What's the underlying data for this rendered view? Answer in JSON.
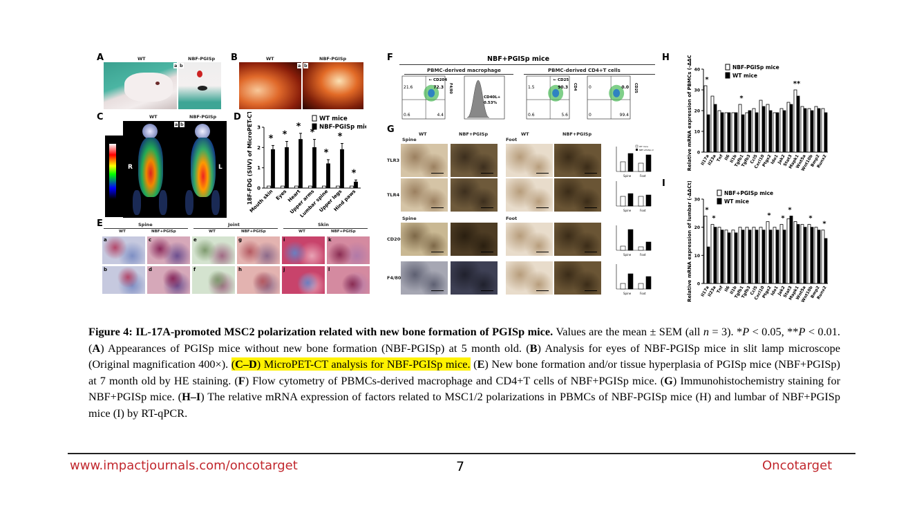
{
  "panels": {
    "A": {
      "label": "A",
      "wt": "WT",
      "nbf": "NBF-PGISp",
      "a": "a",
      "b": "b"
    },
    "B": {
      "label": "B",
      "wt": "WT",
      "nbf": "NBF-PGISp",
      "a": "a",
      "b": "b"
    },
    "C": {
      "label": "C",
      "wt": "WT",
      "nbf": "NBF-PGISp",
      "r": "R",
      "l": "L",
      "a": "a",
      "b": "b"
    },
    "D": {
      "label": "D"
    },
    "E": {
      "label": "E",
      "groups": [
        "Spine",
        "Joint",
        "Skin"
      ],
      "sub": [
        "WT",
        "NBF+PGISp",
        "WT",
        "NBF+PGISp",
        "WT",
        "NBF+PGISp"
      ],
      "letters_top": [
        "a",
        "c",
        "e",
        "g",
        "i",
        "k"
      ],
      "letters_bottom": [
        "b",
        "d",
        "f",
        "h",
        "j",
        "l"
      ]
    },
    "F": {
      "label": "F",
      "title": "NBF+PGISp mice",
      "left_title": "PBMC-derived macrophage",
      "right_title": "PBMC-derived CD4+T cells",
      "q1": [
        "21.6",
        "72.3",
        "0.6",
        "4.4"
      ],
      "marker1": "CD204",
      "marker_y1": "F4/80",
      "hist": "CD40L+",
      "hist_val": "0.53%",
      "q2": [
        "1.5",
        "90.3",
        "0.6",
        "5.6"
      ],
      "marker2": "CD25",
      "marker_y2": "CD4",
      "q3": [
        "0",
        "0.0",
        "0",
        "99.4"
      ],
      "marker_y3": "CD25"
    },
    "G": {
      "label": "G",
      "cols": [
        "WT",
        "NBF+PGISp",
        "WT",
        "NBF+PGISp"
      ],
      "site1": "Spine",
      "site2": "Foot",
      "rows": [
        "TLR3",
        "TLR4",
        "CD206",
        "F4/80"
      ],
      "bar_x": [
        "Spine",
        "Foot"
      ],
      "legend": [
        "WT mice",
        "NBF+PGISp mice"
      ]
    },
    "H": {
      "label": "H",
      "legend": [
        "NBF-PGISp mice",
        "WT mice"
      ]
    },
    "I": {
      "label": "I",
      "legend": [
        "NBF+PGISp mice",
        "WT mice"
      ]
    }
  },
  "chart_data": [
    {
      "id": "D",
      "type": "bar",
      "categories": [
        "Mouth skin",
        "Eyes",
        "Heart",
        "Upper arms",
        "Lumbar spine",
        "Upper legs",
        "Hind paws"
      ],
      "series": [
        {
          "name": "WT mice",
          "values": [
            0.1,
            0.1,
            0.1,
            0.1,
            0.1,
            0.1,
            0.1
          ]
        },
        {
          "name": "NBF-PGISp mice",
          "values": [
            1.9,
            2.0,
            2.4,
            2.0,
            1.2,
            1.9,
            0.3
          ]
        }
      ],
      "errors": [
        0.2,
        0.3,
        0.3,
        0.4,
        0.2,
        0.3,
        0.1
      ],
      "significance": [
        "*",
        "*",
        "*",
        "*",
        "*",
        "*",
        "*"
      ],
      "ylabel": "18F-FDG (SUV) of MicroPET-CT",
      "ylim": [
        0,
        3
      ],
      "yticks": [
        "0",
        "1",
        "2",
        "3"
      ],
      "legend": "top-right"
    },
    {
      "id": "H",
      "type": "bar",
      "categories": [
        "Il17a",
        "Il23a",
        "Tnf",
        "Il6",
        "Il1b",
        "Tgfb1",
        "Tgfb3",
        "Ccl5",
        "Cxcl10",
        "Ptgs2",
        "Ido1",
        "Jak2",
        "Stat3",
        "Mapk1",
        "Wnt5a",
        "Wnt10b",
        "Bmp2",
        "Runx2"
      ],
      "series": [
        {
          "name": "NBF-PGISp mice",
          "values": [
            32,
            27,
            20,
            19,
            19,
            23,
            19,
            21,
            25,
            23,
            19,
            21,
            24,
            30,
            22,
            21,
            22,
            21
          ]
        },
        {
          "name": "WT mice",
          "values": [
            18,
            23,
            19,
            19,
            19,
            18,
            20,
            19,
            22,
            20,
            19,
            20,
            23,
            27,
            21,
            20,
            21,
            19
          ]
        }
      ],
      "significance": [
        "*",
        "",
        "",
        "",
        "",
        "*",
        "",
        "",
        "",
        "",
        "",
        "",
        "",
        "**",
        "",
        "",
        "",
        ""
      ],
      "ylabel": "Relative mRNA expression of PBMCs (-ΔΔCt)",
      "ylim": [
        0,
        40
      ],
      "yticks": [
        "0",
        "10",
        "20",
        "30",
        "40"
      ],
      "legend": "top-left"
    },
    {
      "id": "I",
      "type": "bar",
      "categories": [
        "Il17a",
        "Il23a",
        "Tnf",
        "Il6",
        "Il1b",
        "Tgfb1",
        "Tgfb3",
        "Ccl5",
        "Cxcl10",
        "Ptgs2",
        "Ido1",
        "Jak2",
        "Stat3",
        "Mapk1",
        "Wnt5a",
        "Wnt10b",
        "Bmp2",
        "Runx2"
      ],
      "series": [
        {
          "name": "NBF+PGISp mice",
          "values": [
            24,
            21,
            20,
            19,
            19,
            20,
            20,
            20,
            20,
            22,
            20,
            21,
            23,
            22,
            21,
            21,
            20,
            19
          ]
        },
        {
          "name": "WT mice",
          "values": [
            13,
            20,
            19,
            18,
            18,
            19,
            19,
            19,
            19,
            19,
            19,
            19,
            24,
            21,
            20,
            20,
            19,
            16
          ]
        }
      ],
      "significance": [
        "*",
        "*",
        "",
        "",
        "",
        "",
        "",
        "",
        "",
        "*",
        "",
        "*",
        "*",
        "",
        "",
        "*",
        "",
        "*"
      ],
      "ylabel": "Relative mRNA expression of lumbar (-ΔΔCt)",
      "ylim": [
        0,
        30
      ],
      "yticks": [
        "0",
        "10",
        "20",
        "30"
      ],
      "legend": "top-left"
    }
  ],
  "caption": {
    "title": "Figure 4: IL-17A-promoted MSC2 polarization related with new bone formation of PGISp mice.",
    "p1": " Values are the mean ± SEM (all ",
    "n": "n",
    "p2": " = 3). *",
    "P1": "P",
    "p3": " < 0.05, **",
    "P2": "P",
    "p4": " < 0.01. (",
    "A": "A",
    "p5": ") Appearances of PGISp mice without new bone formation (NBF-PGISp) at 5 month old. (",
    "B": "B",
    "p6": ") Analysis for eyes of NBF-PGISp mice in slit lamp microscope (Original magnification 400×). ",
    "hl1": "(",
    "CD": "C–D",
    "hl2": ") MicroPET-CT analysis for NBF-PGISp mice.",
    "p7": " (",
    "E": "E",
    "p8": ") New bone formation and/or tissue hyperplasia of PGISp mice (NBF+PGISp) at 7 month old by HE staining. (",
    "F": "F",
    "p9": ") Flow cytometry of PBMCs-derived macrophage and CD4+T cells of NBF+PGISp mice. (",
    "G": "G",
    "p10": ") Immunohistochemistry staining for NBF+PGISp mice. (",
    "HI": "H–I",
    "p11": ") The relative mRNA expression of factors related to MSC1/2 polarizations in PBMCs of NBF-PGISp mice (H) and lumbar of NBF+PGISp mice (I) by RT-qPCR."
  },
  "footer": {
    "url": "www.impactjournals.com/oncotarget",
    "page": "7",
    "journal": "Oncotarget"
  },
  "colors": {
    "footer": "#c1272d",
    "highlight": "#fff200"
  }
}
